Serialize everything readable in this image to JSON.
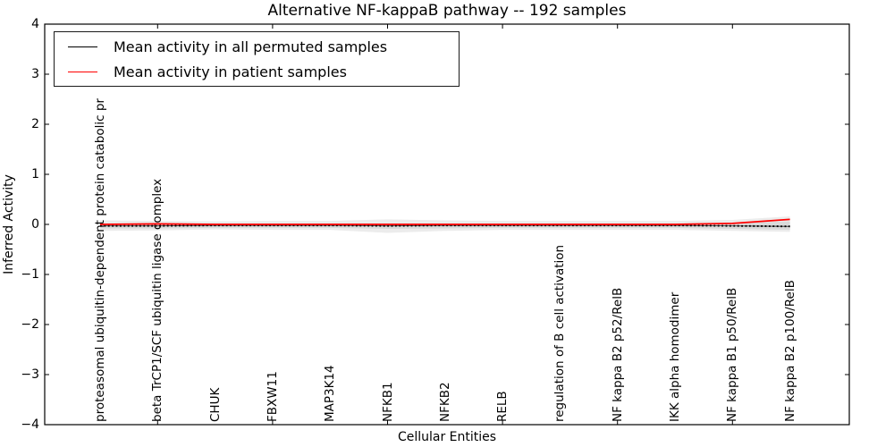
{
  "chart_data": {
    "type": "line",
    "title": "Alternative NF-kappaB pathway -- 192 samples",
    "xlabel": "Cellular Entities",
    "ylabel": "Inferred Activity",
    "ylim": [
      -4,
      4
    ],
    "yticks": [
      4,
      3,
      2,
      1,
      0,
      -1,
      -2,
      -3,
      -4
    ],
    "grid": false,
    "legend_position": "upper left",
    "categories": [
      "proteasomal ubiquitin-dependent protein catabolic pr",
      "beta TrCP1/SCF ubiquitin ligase complex",
      "CHUK",
      "FBXW11",
      "MAP3K14",
      "NFKB1",
      "NFKB2",
      "RELB",
      "regulation of B cell activation",
      "NF kappa B2 p52/RelB",
      "IKK alpha homodimer",
      "NF kappa B1 p50/RelB",
      "NF kappa B2 p100/RelB"
    ],
    "top_tick_indices": [
      1,
      3,
      5,
      7,
      9,
      11
    ],
    "series": [
      {
        "name": "Mean activity in all permuted samples",
        "color": "#000000",
        "style": "dotted",
        "values": [
          -0.03,
          -0.03,
          -0.02,
          -0.02,
          -0.02,
          -0.03,
          -0.02,
          -0.02,
          -0.02,
          -0.02,
          -0.02,
          -0.03,
          -0.04
        ]
      },
      {
        "name": "Mean activity in patient samples",
        "color": "#ff0000",
        "style": "solid",
        "values": [
          0.0,
          0.01,
          0.0,
          0.0,
          0.0,
          0.0,
          0.0,
          0.0,
          0.0,
          0.0,
          0.0,
          0.02,
          0.1
        ]
      }
    ],
    "bands": [
      {
        "name": "permuted-activity-spread-outer",
        "color": "#ececec",
        "upper": [
          0.08,
          0.07,
          0.06,
          0.07,
          0.07,
          0.1,
          0.08,
          0.07,
          0.07,
          0.07,
          0.07,
          0.09,
          0.16
        ],
        "lower": [
          -0.13,
          -0.12,
          -0.1,
          -0.11,
          -0.11,
          -0.17,
          -0.13,
          -0.11,
          -0.11,
          -0.11,
          -0.11,
          -0.13,
          -0.15
        ]
      },
      {
        "name": "permuted-activity-spread-inner",
        "color": "#d9d9d9",
        "upper": [
          0.02,
          0.02,
          0.02,
          0.02,
          0.02,
          0.02,
          0.02,
          0.02,
          0.02,
          0.02,
          0.02,
          0.03,
          0.06
        ],
        "lower": [
          -0.08,
          -0.08,
          -0.07,
          -0.07,
          -0.07,
          -0.09,
          -0.08,
          -0.07,
          -0.07,
          -0.07,
          -0.07,
          -0.09,
          -0.11
        ]
      }
    ]
  }
}
